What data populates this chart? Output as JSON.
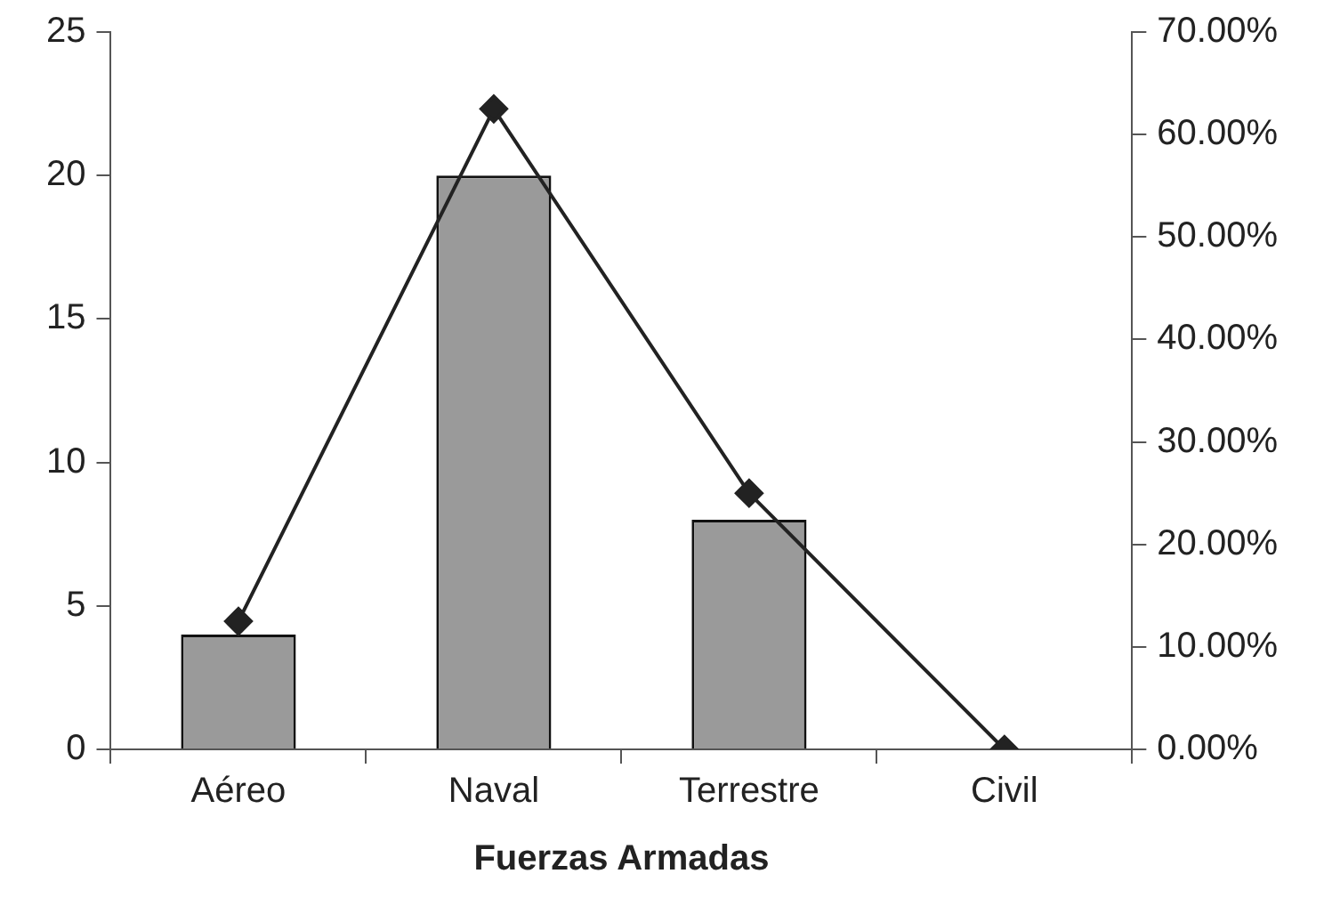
{
  "chart_data": {
    "type": "bar",
    "xlabel": "Fuerzas Armadas",
    "categories": [
      "Aéreo",
      "Naval",
      "Terrestre",
      "Civil"
    ],
    "series": [
      {
        "color": "#9a9a9a",
        "values": [
          4,
          20,
          8,
          0
        ]
      },
      {
        "type": "line",
        "axis": "y2",
        "color": "#222222",
        "marker": "diamond",
        "values": [
          12.5,
          62.5,
          25,
          0
        ]
      }
    ],
    "ylim": [
      0,
      25
    ],
    "yticks": [
      0,
      5,
      10,
      15,
      20,
      25
    ],
    "y2lim": [
      0,
      70
    ],
    "y2ticks": [
      {
        "value": 0,
        "label": "0.00%"
      },
      {
        "value": 10,
        "label": "10.00%"
      },
      {
        "value": 20,
        "label": "20.00%"
      },
      {
        "value": 30,
        "label": "30.00%"
      },
      {
        "value": 40,
        "label": "40.00%"
      },
      {
        "value": 50,
        "label": "50.00%"
      },
      {
        "value": 60,
        "label": "60.00%"
      },
      {
        "value": 70,
        "label": "70.00%"
      }
    ],
    "grid": false,
    "legend": false
  }
}
